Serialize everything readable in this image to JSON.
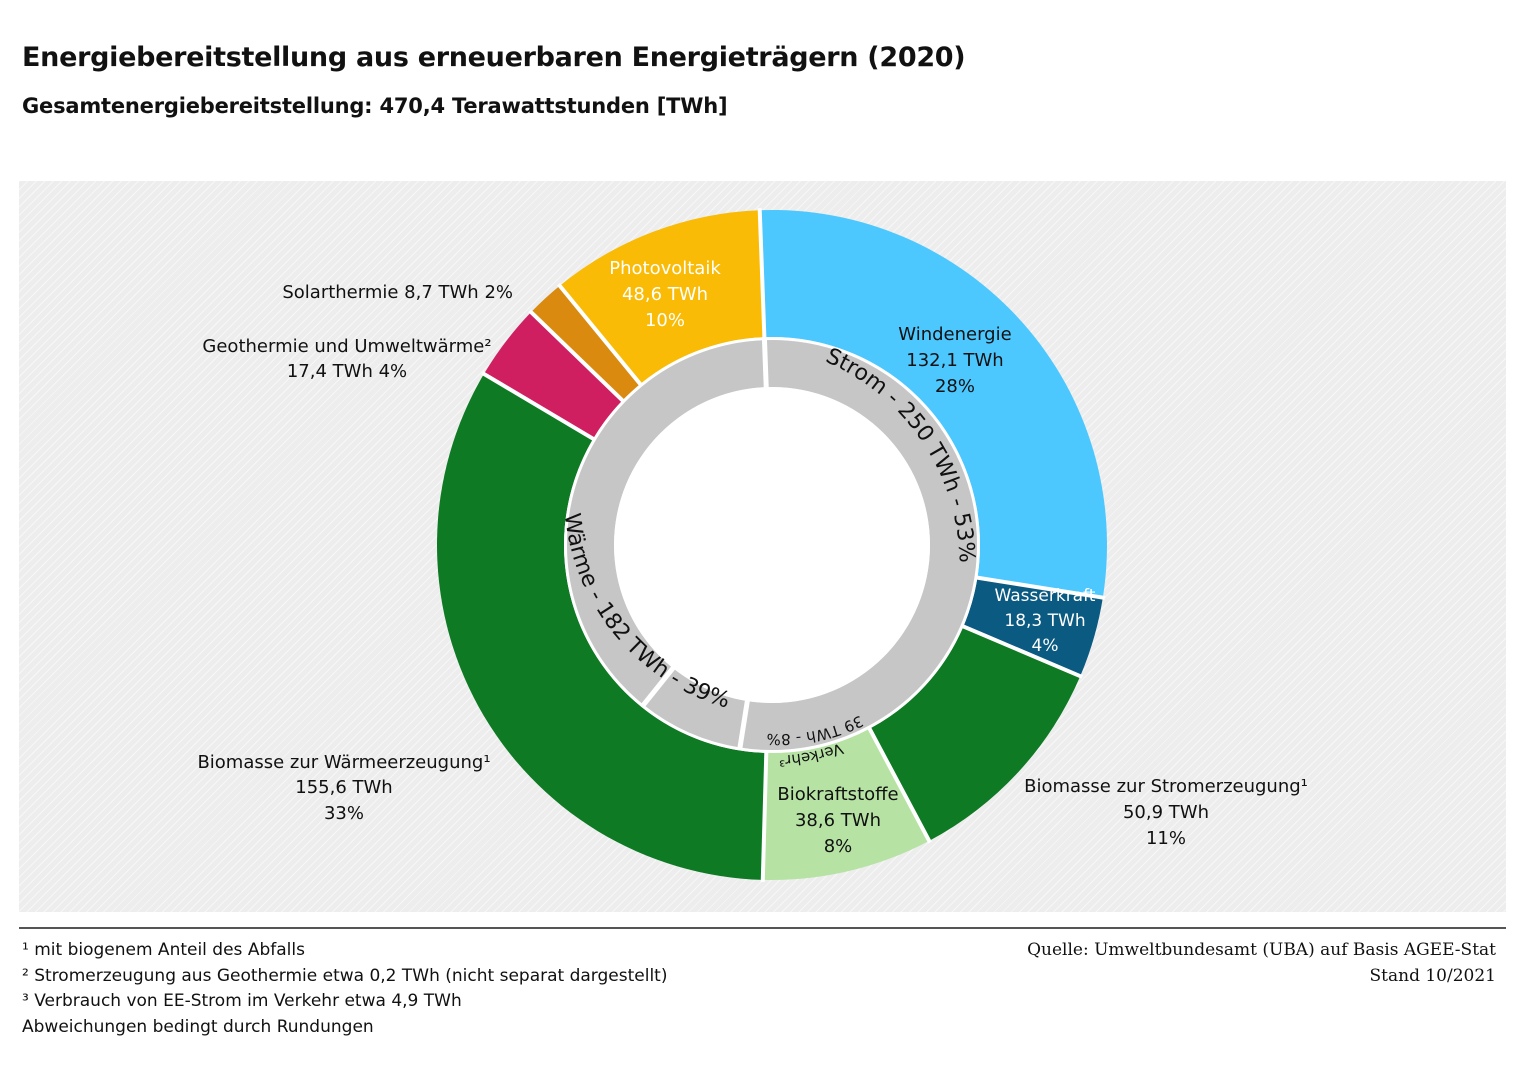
{
  "title": "Energiebereitstellung aus erneuerbaren Energieträgern (2020)",
  "subtitle": "Gesamtenergiebereitstellung:  470,4 Terawattstunden [TWh]",
  "chart_data": {
    "type": "pie",
    "subtype": "nested donut",
    "unit": "TWh",
    "total": 470.4,
    "outer_ring": [
      {
        "name": "Windenergie",
        "value": 132.1,
        "value_label": "132,1 TWh",
        "percent_label": "28%",
        "color": "#4dc8ff"
      },
      {
        "name": "Wasserkraft",
        "value": 18.3,
        "value_label": "18,3 TWh",
        "percent_label": "4%",
        "color": "#0a5a82"
      },
      {
        "name": "Biomasse zur Stromerzeugung¹",
        "value": 50.9,
        "value_label": "50,9 TWh",
        "percent_label": "11%",
        "color": "#0e7a24"
      },
      {
        "name": "Biokraftstoffe",
        "value": 38.6,
        "value_label": "38,6 TWh",
        "percent_label": "8%",
        "color": "#b6e3a4"
      },
      {
        "name": "Biomasse zur Wärmeerzeugung¹",
        "value": 155.6,
        "value_label": "155,6 TWh",
        "percent_label": "33%",
        "color": "#0e7a24"
      },
      {
        "name": "Geothermie und Umweltwärme²",
        "value": 17.4,
        "value_label": "17,4 TWh",
        "percent_label": "4%",
        "color": "#cf1f61"
      },
      {
        "name": "Solarthermie",
        "value": 8.7,
        "value_label": "8,7 TWh",
        "percent_label": "2%",
        "color": "#d98a0f"
      },
      {
        "name": "Photovoltaik",
        "value": 48.6,
        "value_label": "48,6 TWh",
        "percent_label": "10%",
        "color": "#f9bb06"
      }
    ],
    "inner_ring": [
      {
        "label": "Strom - 250 TWh - 53%",
        "value": 250
      },
      {
        "label": "Verkehr³ 39 TWh - 8%",
        "value": 39
      },
      {
        "label": "Wärme - 182 TWh - 39%",
        "value": 182
      }
    ],
    "outer_labels": {
      "solarthermie": "Solarthermie 8,7 TWh 2%",
      "geothermie_name": "Geothermie und Umweltwärme²",
      "geothermie_value": "17,4 TWh 4%"
    },
    "inner_labels": {
      "strom": "Strom - 250 TWh - 53%",
      "waerme": "Wärme - 182 TWh - 39%",
      "verkehr_a": "Verkehr³",
      "verkehr_b": "39 TWh - 8%"
    },
    "inner_ring_color": "#c6c6c6"
  },
  "footnotes": [
    "¹ mit biogenem Anteil des Abfalls",
    "² Stromerzeugung aus Geothermie etwa 0,2 TWh (nicht separat dargestellt)",
    "³ Verbrauch von EE-Strom im Verkehr etwa  4,9 TWh",
    "Abweichungen bedingt durch Rundungen"
  ],
  "source": "Quelle:  Umweltbundesamt (UBA) auf Basis AGEE-Stat",
  "stand": "Stand 10/2021"
}
